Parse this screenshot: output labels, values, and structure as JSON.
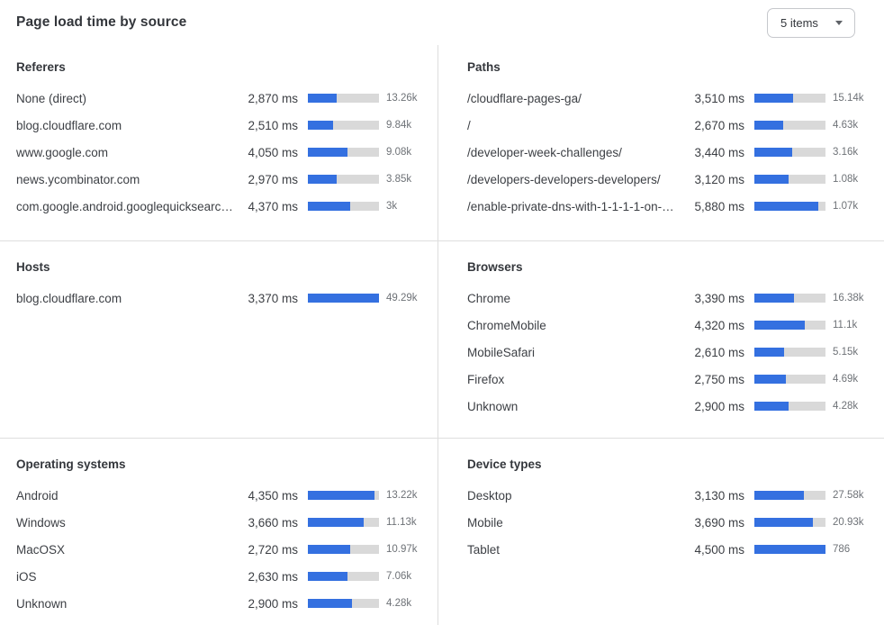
{
  "header": {
    "title": "Page load time by source",
    "items_selector": {
      "value": "5 items",
      "icon": "chevron-down-icon"
    }
  },
  "colors": {
    "bar_fill": "#3470e0",
    "bar_track": "#d9d9d9",
    "divider": "#dedede"
  },
  "unit": "ms",
  "chart_data": [
    {
      "type": "bar",
      "title": "Referers",
      "categories": [
        "None (direct)",
        "blog.cloudflare.com",
        "www.google.com",
        "news.ycombinator.com",
        "com.google.android.googlequicksearc…"
      ],
      "ms_values": [
        2870,
        2510,
        4050,
        2970,
        4370
      ],
      "ms_labels": [
        "2,870 ms",
        "2,510 ms",
        "4,050 ms",
        "2,970 ms",
        "4,370 ms"
      ],
      "counts": [
        "13.26k",
        "9.84k",
        "9.08k",
        "3.85k",
        "3k"
      ],
      "bar_fill_pct": [
        40,
        35,
        56,
        41,
        60
      ]
    },
    {
      "type": "bar",
      "title": "Paths",
      "categories": [
        "/cloudflare-pages-ga/",
        "/",
        "/developer-week-challenges/",
        "/developers-developers-developers/",
        "/enable-private-dns-with-1-1-1-1-on-…"
      ],
      "ms_values": [
        3510,
        2670,
        3440,
        3120,
        5880
      ],
      "ms_labels": [
        "3,510 ms",
        "2,670 ms",
        "3,440 ms",
        "3,120 ms",
        "5,880 ms"
      ],
      "counts": [
        "15.14k",
        "4.63k",
        "3.16k",
        "1.08k",
        "1.07k"
      ],
      "bar_fill_pct": [
        54,
        41,
        53,
        48,
        90
      ]
    },
    {
      "type": "bar",
      "title": "Hosts",
      "categories": [
        "blog.cloudflare.com"
      ],
      "ms_values": [
        3370
      ],
      "ms_labels": [
        "3,370 ms"
      ],
      "counts": [
        "49.29k"
      ],
      "bar_fill_pct": [
        100
      ]
    },
    {
      "type": "bar",
      "title": "Browsers",
      "categories": [
        "Chrome",
        "ChromeMobile",
        "MobileSafari",
        "Firefox",
        "Unknown"
      ],
      "ms_values": [
        3390,
        4320,
        2610,
        2750,
        2900
      ],
      "ms_labels": [
        "3,390 ms",
        "4,320 ms",
        "2,610 ms",
        "2,750 ms",
        "2,900 ms"
      ],
      "counts": [
        "16.38k",
        "11.1k",
        "5.15k",
        "4.69k",
        "4.28k"
      ],
      "bar_fill_pct": [
        56,
        71,
        42,
        44,
        48
      ]
    },
    {
      "type": "bar",
      "title": "Operating systems",
      "categories": [
        "Android",
        "Windows",
        "MacOSX",
        "iOS",
        "Unknown"
      ],
      "ms_values": [
        4350,
        3660,
        2720,
        2630,
        2900
      ],
      "ms_labels": [
        "4,350 ms",
        "3,660 ms",
        "2,720 ms",
        "2,630 ms",
        "2,900 ms"
      ],
      "counts": [
        "13.22k",
        "11.13k",
        "10.97k",
        "7.06k",
        "4.28k"
      ],
      "bar_fill_pct": [
        94,
        79,
        59,
        56,
        62
      ]
    },
    {
      "type": "bar",
      "title": "Device types",
      "categories": [
        "Desktop",
        "Mobile",
        "Tablet"
      ],
      "ms_values": [
        3130,
        3690,
        4500
      ],
      "ms_labels": [
        "3,130 ms",
        "3,690 ms",
        "4,500 ms"
      ],
      "counts": [
        "27.58k",
        "20.93k",
        "786"
      ],
      "bar_fill_pct": [
        70,
        82,
        100
      ]
    }
  ]
}
